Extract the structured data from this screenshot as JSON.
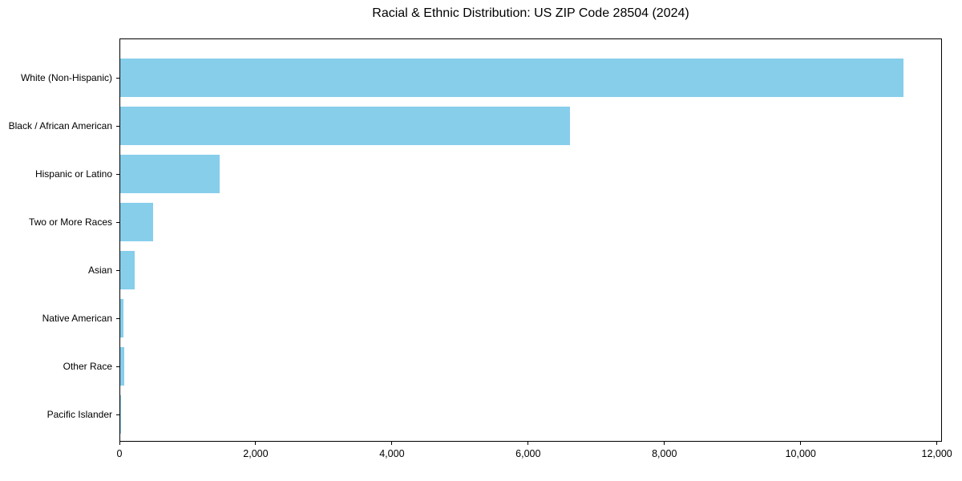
{
  "chart_data": {
    "type": "bar",
    "orientation": "horizontal",
    "title": "Racial & Ethnic Distribution: US ZIP Code 28504 (2024)",
    "categories": [
      "White (Non-Hispanic)",
      "Black / African American",
      "Hispanic or Latino",
      "Two or More Races",
      "Asian",
      "Native American",
      "Other Race",
      "Pacific Islander"
    ],
    "values": [
      11500,
      6600,
      1460,
      480,
      210,
      45,
      55,
      8
    ],
    "bar_color": "#87CEEB",
    "axis_color": "#000000",
    "background_color": "#ffffff",
    "xlabel": "",
    "ylabel": "",
    "xlim": [
      0,
      12075
    ],
    "xticks": [
      0,
      2000,
      4000,
      6000,
      8000,
      10000,
      12000
    ],
    "xtick_labels": [
      "0",
      "2,000",
      "4,000",
      "6,000",
      "8,000",
      "10,000",
      "12,000"
    ],
    "grid": false,
    "legend": null
  }
}
